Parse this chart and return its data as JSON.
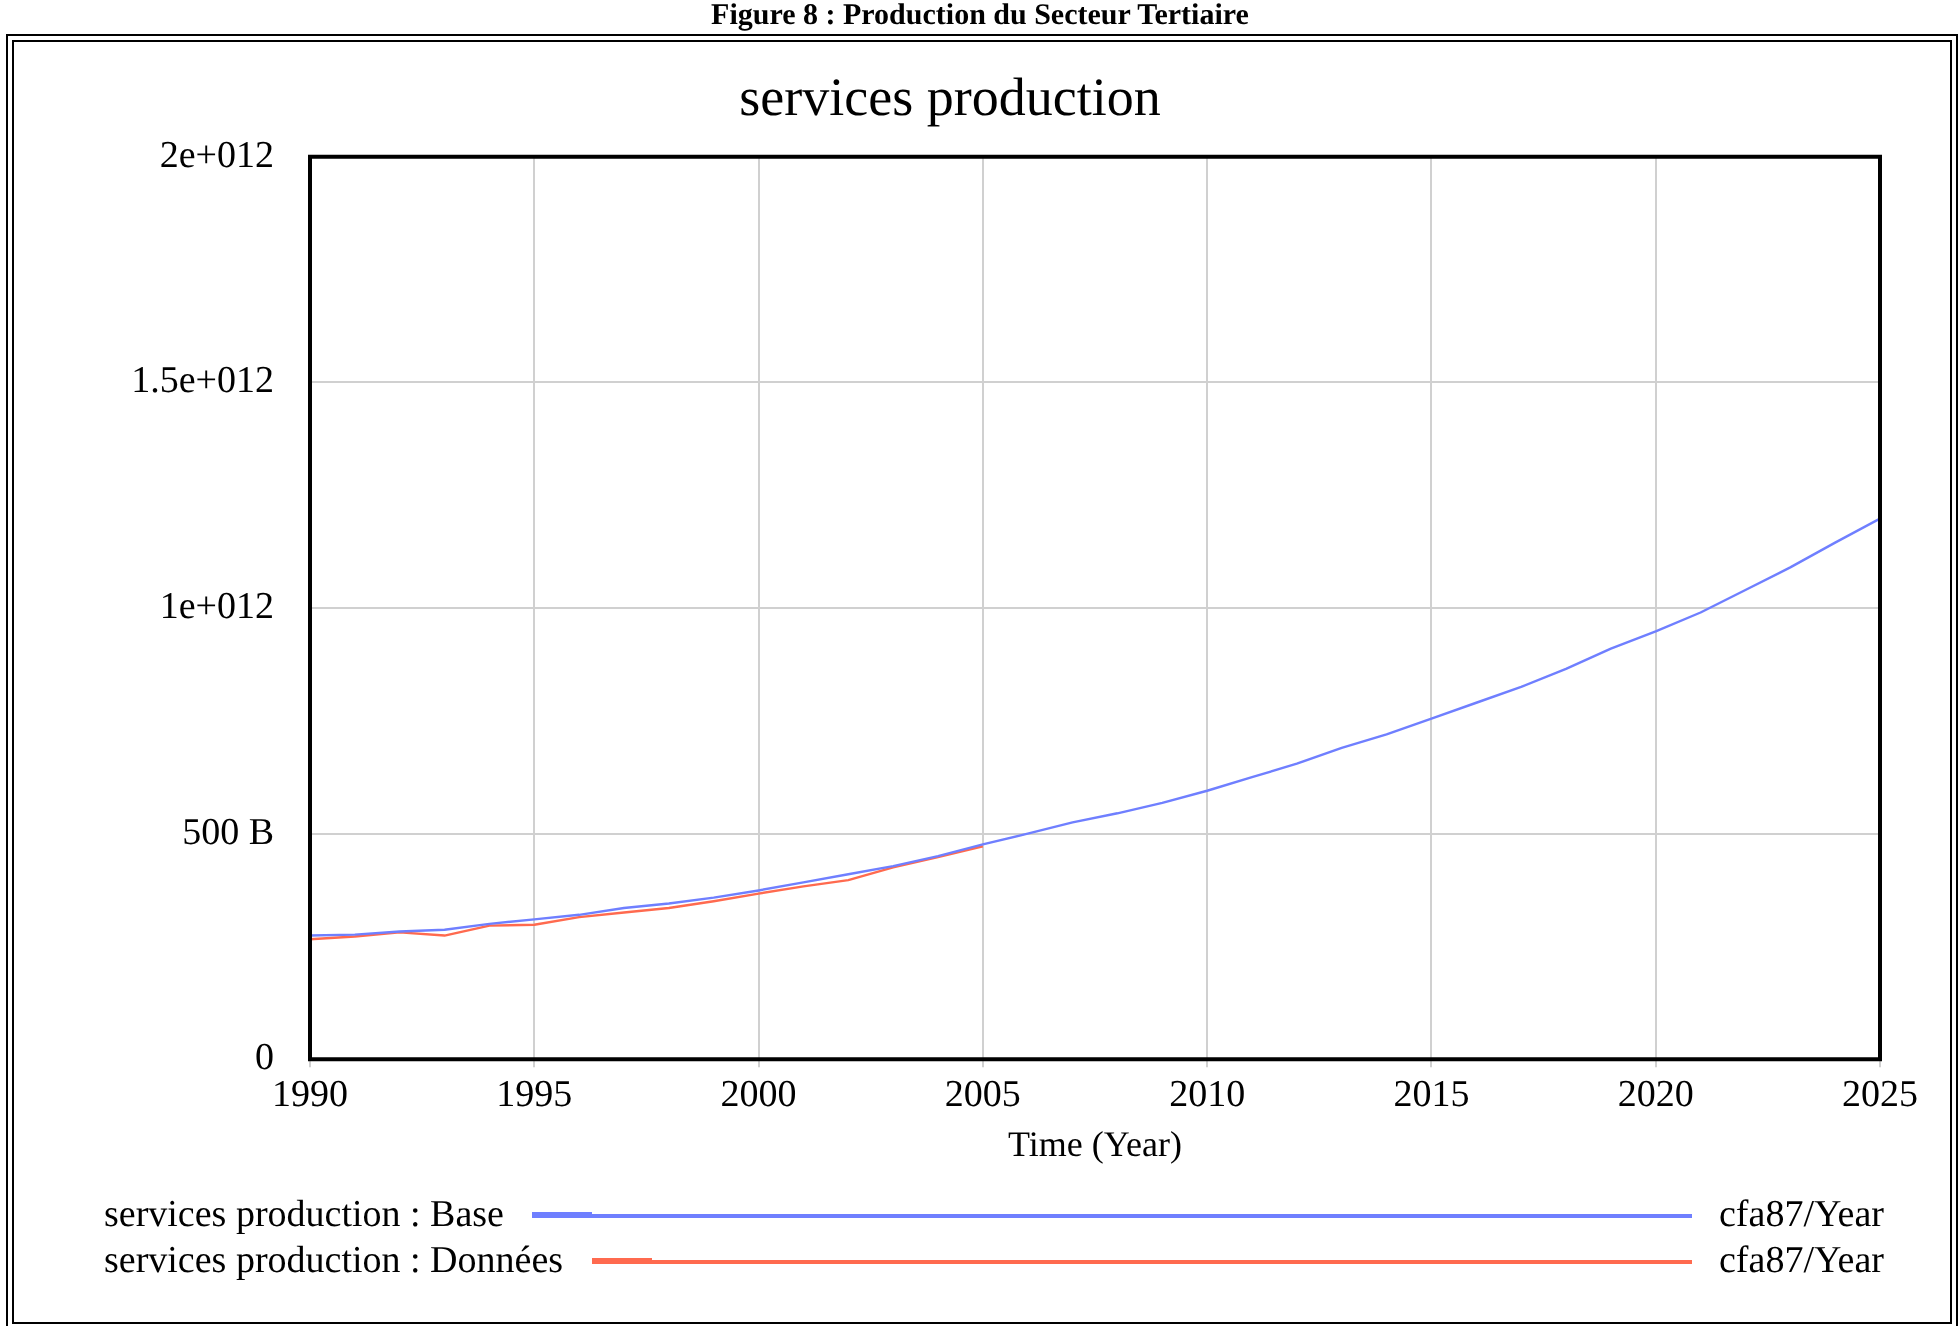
{
  "chart_data": {
    "type": "line",
    "title": "services production",
    "xlabel": "Time (Year)",
    "annotations": [
      "Figure 8 : Production du Secteur Tertiaire",
      "cfa87/Year",
      "cfa87/Year"
    ],
    "xlim": [
      1990,
      2025
    ],
    "xticks": [
      1990,
      1995,
      2000,
      2005,
      2010,
      2015,
      2020,
      2025
    ],
    "ylim": [
      0,
      2000000000000
    ],
    "yticks": [
      0,
      {
        "value": 500000000000,
        "label": "500 B"
      },
      {
        "value": 1000000000000,
        "label": "1e+012"
      },
      {
        "value": 1500000000000,
        "label": "1.5e+012"
      },
      {
        "value": 2000000000000,
        "label": "2e+012"
      }
    ],
    "grid": true,
    "legend": "bottom",
    "marker": "none",
    "line_style": "solid",
    "series": [
      {
        "name": "services production : Base",
        "color": "#6f7fff",
        "x": [
          1990,
          1991,
          1992,
          1993,
          1994,
          1995,
          1996,
          1997,
          1998,
          1999,
          2000,
          2001,
          2002,
          2003,
          2004,
          2005,
          2006,
          2007,
          2008,
          2009,
          2010,
          2011,
          2012,
          2013,
          2014,
          2015,
          2016,
          2017,
          2018,
          2019,
          2020,
          2021,
          2022,
          2023,
          2024,
          2025
        ],
        "values": [
          274000000000,
          276000000000,
          283000000000,
          287000000000,
          300000000000,
          310000000000,
          320000000000,
          335000000000,
          345000000000,
          358000000000,
          374000000000,
          392000000000,
          410000000000,
          428000000000,
          450000000000,
          476000000000,
          500000000000,
          525000000000,
          545000000000,
          568000000000,
          595000000000,
          625000000000,
          655000000000,
          690000000000,
          720000000000,
          755000000000,
          790000000000,
          825000000000,
          865000000000,
          910000000000,
          948000000000,
          990000000000,
          1040000000000,
          1090000000000,
          1145000000000,
          1198000000000
        ]
      },
      {
        "name": "services production : Données",
        "color": "#ff6a4f",
        "x": [
          1990,
          1991,
          1992,
          1993,
          1994,
          1995,
          1996,
          1997,
          1998,
          1999,
          2000,
          2001,
          2002,
          2003,
          2004,
          2005
        ],
        "values": [
          266000000000,
          272000000000,
          281000000000,
          274000000000,
          296000000000,
          298000000000,
          315000000000,
          325000000000,
          335000000000,
          350000000000,
          367000000000,
          383000000000,
          397000000000,
          425000000000,
          448000000000,
          472000000000
        ]
      }
    ]
  }
}
